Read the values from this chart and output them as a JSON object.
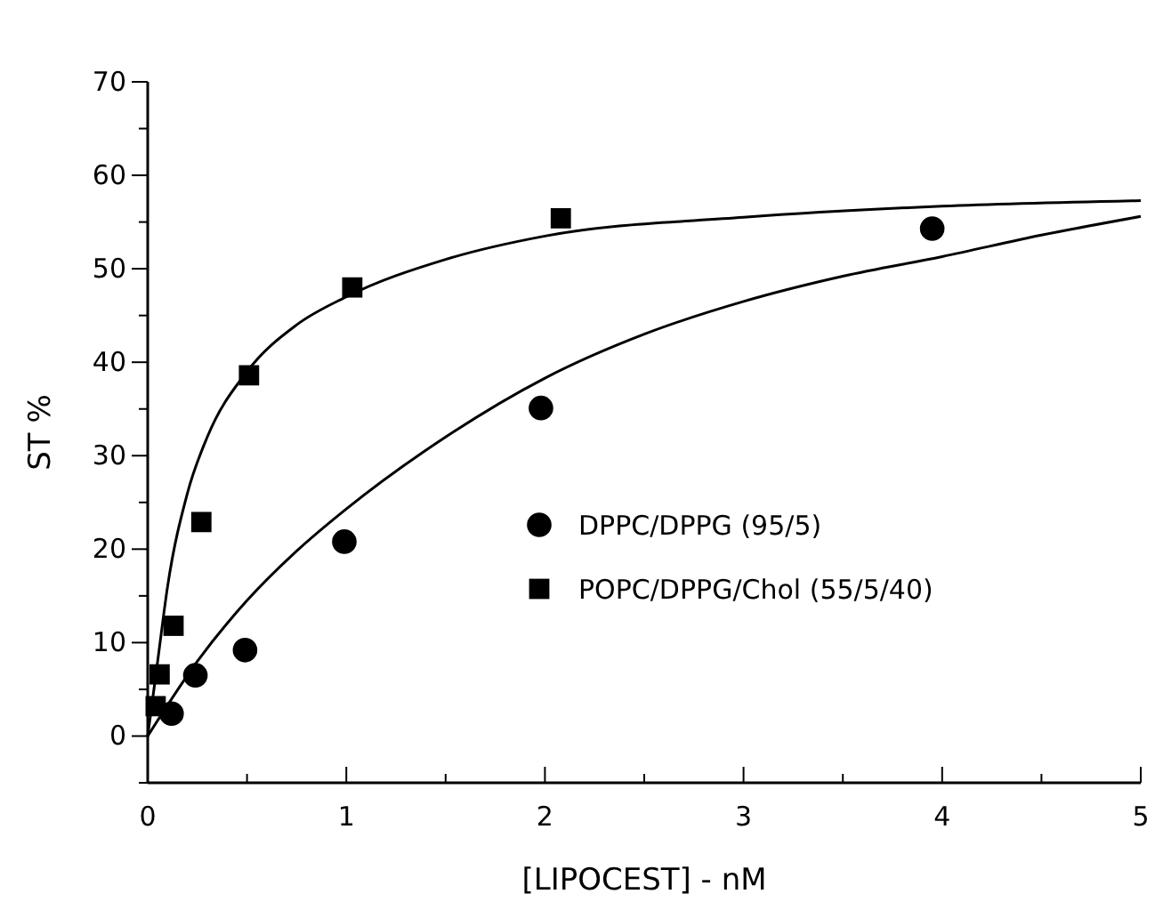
{
  "chart_data": {
    "type": "scatter",
    "xlabel": "[LIPOCEST] - nM",
    "ylabel": "ST %",
    "xlim": [
      0,
      5
    ],
    "ylim": [
      -5,
      70
    ],
    "xticks": [
      0,
      {
        "value": 0.5,
        "label": null
      },
      1,
      {
        "value": 1.5,
        "label": null
      },
      2,
      {
        "value": 2.5,
        "label": null
      },
      3,
      {
        "value": 3.5,
        "label": null
      },
      4,
      {
        "value": 4.5,
        "label": null
      },
      5
    ],
    "yticks": [
      {
        "value": -5,
        "label": null
      },
      0,
      {
        "value": 5,
        "label": null
      },
      10,
      {
        "value": 15,
        "label": null
      },
      20,
      {
        "value": 25,
        "label": null
      },
      30,
      {
        "value": 35,
        "label": null
      },
      40,
      {
        "value": 45,
        "label": null
      },
      50,
      {
        "value": 55,
        "label": null
      },
      60,
      {
        "value": 65,
        "label": null
      },
      70
    ],
    "legend": "bottom right",
    "grid": false,
    "series": [
      {
        "name": "DPPC/DPPG (95/5)",
        "color": "#000000",
        "marker": "circle",
        "x": [
          0.12,
          0.24,
          0.49,
          0.99,
          1.98,
          3.95
        ],
        "values": [
          2.4,
          6.5,
          9.2,
          20.8,
          35.1,
          54.3
        ]
      },
      {
        "name": "POPC/DPPG/Chol (55/5/40)",
        "color": "#000000",
        "marker": "square",
        "x": [
          0.04,
          0.06,
          0.13,
          0.27,
          0.51,
          1.03,
          2.08
        ],
        "values": [
          3.2,
          6.6,
          11.8,
          22.9,
          38.6,
          48,
          55.4
        ]
      },
      {
        "type": "line",
        "color": "#000000",
        "marker": "none",
        "line_style": "solid",
        "x": [
          0,
          0.25,
          0.5,
          0.75,
          1,
          1.5,
          2,
          2.5,
          3,
          3.5,
          4,
          4.5,
          5
        ],
        "values": [
          0,
          8,
          14.5,
          19.8,
          24.3,
          32,
          38.3,
          43,
          46.5,
          49.2,
          51.3,
          53.6,
          55.6
        ]
      },
      {
        "type": "line",
        "color": "#000000",
        "marker": "none",
        "line_style": "solid",
        "x": [
          0,
          0.05,
          0.1,
          0.2,
          0.3,
          0.5,
          0.75,
          1,
          1.5,
          2,
          3,
          4,
          5
        ],
        "values": [
          0,
          8,
          16,
          26,
          32,
          39,
          44,
          47,
          51,
          53.5,
          55.5,
          56.7,
          57.3
        ]
      }
    ]
  }
}
